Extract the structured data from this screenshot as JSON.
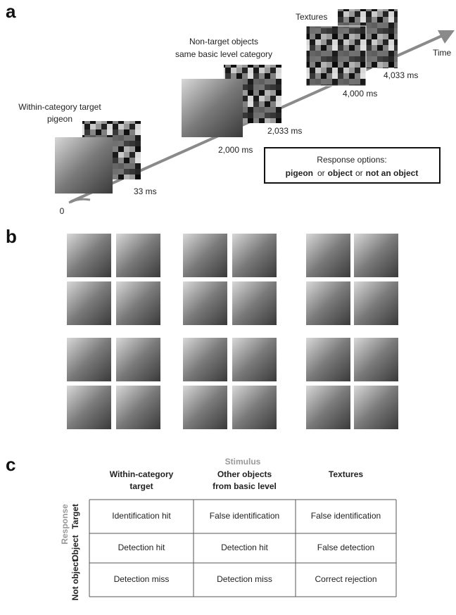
{
  "panel_a": {
    "label": "a",
    "target_label": [
      "Within-category target",
      "pigeon"
    ],
    "nontarget_label": [
      "Non-target objects",
      "same basic level category"
    ],
    "textures_label": "Textures",
    "times": [
      "0",
      "33 ms",
      "2,000 ms",
      "2,033 ms",
      "4,000 ms",
      "4,033 ms"
    ],
    "time_axis": "Time",
    "response_box": {
      "title": "Response options:",
      "options": [
        "pigeon",
        "object",
        "not an object"
      ],
      "separator": "or"
    }
  },
  "panel_b": {
    "label": "b"
  },
  "panel_c": {
    "label": "c",
    "stimulus_title": "Stimulus",
    "response_title": "Response",
    "columns": [
      [
        "Within-category",
        "target"
      ],
      [
        "Other objects",
        "from basic level"
      ],
      [
        "Textures"
      ]
    ],
    "rows": [
      {
        "label": "Target",
        "cells": [
          "Identification hit",
          "False identification",
          "False identification"
        ]
      },
      {
        "label": "Object",
        "cells": [
          "Detection hit",
          "Detection hit",
          "False detection"
        ]
      },
      {
        "label": "Not object",
        "cells": [
          "Detection miss",
          "Detection miss",
          "Correct rejection"
        ]
      }
    ]
  }
}
